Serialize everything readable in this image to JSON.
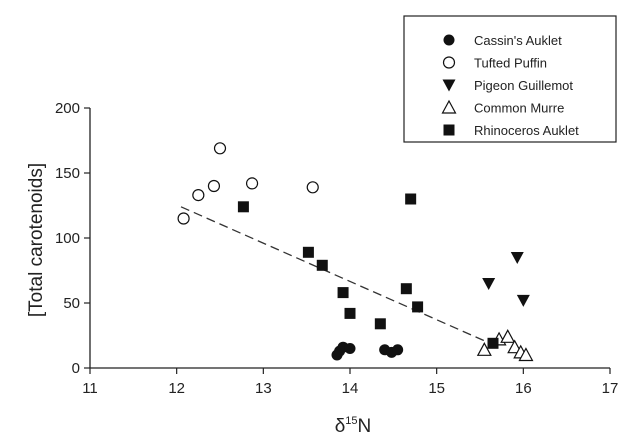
{
  "chart_data": {
    "type": "scatter",
    "xlabel_base": "δ",
    "xlabel_sup": "15",
    "xlabel_rest": "N",
    "ylabel": "[Total carotenoids]",
    "xlim": [
      11,
      17
    ],
    "ylim": [
      0,
      200
    ],
    "xticks": [
      "11",
      "12",
      "13",
      "14",
      "15",
      "16",
      "17"
    ],
    "yticks": [
      "0",
      "50",
      "100",
      "150",
      "200"
    ],
    "legend_position": "top-right",
    "series": [
      {
        "name": "Cassin's Auklet",
        "marker": "circle-filled",
        "points": [
          [
            13.85,
            10
          ],
          [
            13.88,
            13
          ],
          [
            13.92,
            16
          ],
          [
            14.0,
            15
          ],
          [
            14.4,
            14
          ],
          [
            14.48,
            12
          ],
          [
            14.55,
            14
          ]
        ]
      },
      {
        "name": "Tufted Puffin",
        "marker": "circle-open",
        "points": [
          [
            12.08,
            115
          ],
          [
            12.25,
            133
          ],
          [
            12.43,
            140
          ],
          [
            12.5,
            169
          ],
          [
            12.87,
            142
          ],
          [
            13.57,
            139
          ]
        ]
      },
      {
        "name": "Pigeon Guillemot",
        "marker": "triangle-down-filled",
        "points": [
          [
            15.6,
            65
          ],
          [
            15.93,
            85
          ],
          [
            16.0,
            52
          ]
        ]
      },
      {
        "name": "Common Murre",
        "marker": "triangle-up-open",
        "points": [
          [
            15.55,
            14
          ],
          [
            15.72,
            22
          ],
          [
            15.82,
            24
          ],
          [
            15.9,
            16
          ],
          [
            15.97,
            12
          ],
          [
            16.03,
            10
          ]
        ]
      },
      {
        "name": "Rhinoceros Auklet",
        "marker": "square-filled",
        "points": [
          [
            12.77,
            124
          ],
          [
            13.52,
            89
          ],
          [
            13.68,
            79
          ],
          [
            13.92,
            58
          ],
          [
            14.0,
            42
          ],
          [
            14.35,
            34
          ],
          [
            14.65,
            61
          ],
          [
            14.7,
            130
          ],
          [
            14.78,
            47
          ],
          [
            15.65,
            19
          ]
        ]
      }
    ],
    "trendline": {
      "x": [
        12.05,
        15.65
      ],
      "y": [
        124,
        18
      ],
      "style": "dashed"
    }
  }
}
